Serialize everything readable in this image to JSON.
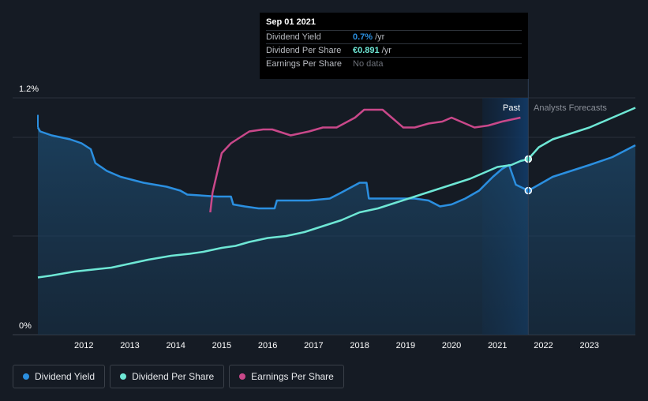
{
  "colors": {
    "dividend_yield": "#2b8fe0",
    "dividend_per_share": "#6ee7d5",
    "earnings_per_share": "#c9488a",
    "background": "#151b24",
    "forecast_band": "#0e2a4a"
  },
  "tooltip": {
    "date": "Sep 01 2021",
    "rows": [
      {
        "name": "Dividend Yield",
        "value": "0.7%",
        "unit": "/yr"
      },
      {
        "name": "Dividend Per Share",
        "value": "€0.891",
        "unit": "/yr"
      },
      {
        "name": "Earnings Per Share",
        "value": "No data",
        "unit": ""
      }
    ]
  },
  "legend": [
    {
      "label": "Dividend Yield",
      "color": "#2b8fe0"
    },
    {
      "label": "Dividend Per Share",
      "color": "#6ee7d5"
    },
    {
      "label": "Earnings Per Share",
      "color": "#c9488a"
    }
  ],
  "chart_data": {
    "type": "line",
    "title": "",
    "xlabel": "",
    "ylabel": "",
    "ylim_label_top": "1.2%",
    "ylim_label_bottom": "0%",
    "ylim": [
      0,
      1.2
    ],
    "xlim": [
      2011.0,
      2024.0
    ],
    "x_ticks": [
      "2012",
      "2013",
      "2014",
      "2015",
      "2016",
      "2017",
      "2018",
      "2019",
      "2020",
      "2021",
      "2022",
      "2023"
    ],
    "past_label": "Past",
    "forecast_label": "Analysts Forecasts",
    "past_forecast_boundary": 2021.67,
    "highlight_start": 2020.67,
    "grid": true,
    "legend_position": "bottom-left",
    "series": [
      {
        "name": "Dividend Yield",
        "unit": "%",
        "x": [
          2011.0,
          2011.05,
          2011.3,
          2011.7,
          2011.95,
          2012.15,
          2012.25,
          2012.5,
          2012.8,
          2013.3,
          2013.8,
          2014.1,
          2014.25,
          2014.9,
          2015.2,
          2015.25,
          2015.5,
          2015.8,
          2016.15,
          2016.2,
          2016.6,
          2016.9,
          2017.35,
          2017.6,
          2018.0,
          2018.15,
          2018.2,
          2018.5,
          2018.8,
          2019.2,
          2019.5,
          2019.75,
          2020.0,
          2020.3,
          2020.6,
          2020.9,
          2021.1,
          2021.25,
          2021.4,
          2021.67,
          2021.9,
          2022.2,
          2022.6,
          2023.0,
          2023.5,
          2024.0
        ],
        "y": [
          1.05,
          1.03,
          1.01,
          0.99,
          0.97,
          0.94,
          0.87,
          0.83,
          0.8,
          0.77,
          0.75,
          0.73,
          0.71,
          0.7,
          0.7,
          0.66,
          0.65,
          0.64,
          0.64,
          0.68,
          0.68,
          0.68,
          0.69,
          0.72,
          0.77,
          0.77,
          0.69,
          0.69,
          0.69,
          0.69,
          0.68,
          0.65,
          0.66,
          0.69,
          0.73,
          0.8,
          0.84,
          0.86,
          0.76,
          0.73,
          0.76,
          0.8,
          0.83,
          0.86,
          0.9,
          0.96
        ]
      },
      {
        "name": "Dividend Per Share",
        "unit": "€",
        "x": [
          2011.0,
          2011.3,
          2011.8,
          2012.2,
          2012.6,
          2013.0,
          2013.4,
          2013.9,
          2014.3,
          2014.6,
          2015.0,
          2015.3,
          2015.6,
          2016.0,
          2016.4,
          2016.8,
          2017.2,
          2017.6,
          2018.0,
          2018.4,
          2018.8,
          2019.2,
          2019.6,
          2020.0,
          2020.4,
          2020.8,
          2021.0,
          2021.3,
          2021.5,
          2021.67,
          2021.9,
          2022.2,
          2022.6,
          2023.0,
          2023.5,
          2024.0
        ],
        "y": [
          0.29,
          0.3,
          0.32,
          0.33,
          0.34,
          0.36,
          0.38,
          0.4,
          0.41,
          0.42,
          0.44,
          0.45,
          0.47,
          0.49,
          0.5,
          0.52,
          0.55,
          0.58,
          0.62,
          0.64,
          0.67,
          0.7,
          0.73,
          0.76,
          0.79,
          0.83,
          0.85,
          0.86,
          0.88,
          0.89,
          0.95,
          0.99,
          1.02,
          1.05,
          1.1,
          1.15
        ]
      },
      {
        "name": "Earnings Per Share",
        "unit": "",
        "x": [
          2014.75,
          2014.8,
          2014.9,
          2015.0,
          2015.2,
          2015.4,
          2015.6,
          2015.9,
          2016.1,
          2016.5,
          2016.9,
          2017.2,
          2017.5,
          2017.9,
          2018.1,
          2018.3,
          2018.5,
          2018.75,
          2018.95,
          2019.2,
          2019.5,
          2019.8,
          2020.0,
          2020.2,
          2020.5,
          2020.8,
          2021.1,
          2021.5
        ],
        "y": [
          0.62,
          0.72,
          0.82,
          0.92,
          0.97,
          1.0,
          1.03,
          1.04,
          1.04,
          1.01,
          1.03,
          1.05,
          1.05,
          1.1,
          1.14,
          1.14,
          1.14,
          1.09,
          1.05,
          1.05,
          1.07,
          1.08,
          1.1,
          1.08,
          1.05,
          1.06,
          1.08,
          1.1
        ]
      }
    ]
  }
}
